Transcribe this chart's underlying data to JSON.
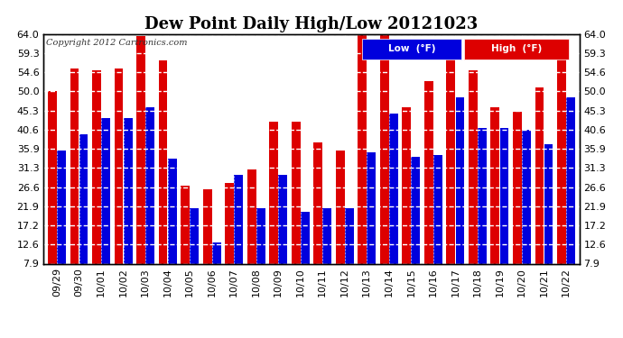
{
  "title": "Dew Point Daily High/Low 20121023",
  "copyright": "Copyright 2012 Cartronics.com",
  "background_color": "#ffffff",
  "plot_background": "#ffffff",
  "grid_color": "#bbbbbb",
  "bar_color_low": "#0000dd",
  "bar_color_high": "#dd0000",
  "legend_low_label": "Low  (°F)",
  "legend_high_label": "High  (°F)",
  "dates": [
    "09/29",
    "09/30",
    "10/01",
    "10/02",
    "10/03",
    "10/04",
    "10/05",
    "10/06",
    "10/07",
    "10/08",
    "10/09",
    "10/10",
    "10/11",
    "10/12",
    "10/13",
    "10/14",
    "10/15",
    "10/16",
    "10/17",
    "10/18",
    "10/19",
    "10/20",
    "10/21",
    "10/22"
  ],
  "high": [
    50.0,
    55.5,
    55.0,
    55.5,
    63.5,
    57.5,
    27.0,
    26.0,
    27.5,
    31.0,
    42.5,
    42.5,
    37.5,
    35.5,
    64.0,
    64.0,
    46.0,
    52.5,
    59.0,
    55.0,
    46.0,
    45.0,
    51.0,
    59.0
  ],
  "low": [
    35.5,
    39.5,
    43.5,
    43.5,
    46.0,
    33.5,
    21.5,
    13.0,
    29.5,
    21.5,
    29.5,
    20.5,
    21.5,
    21.5,
    35.0,
    44.5,
    34.0,
    34.5,
    48.5,
    41.0,
    41.0,
    40.5,
    37.0,
    48.5
  ],
  "ylim_min": 7.9,
  "ylim_max": 64.0,
  "yticks": [
    7.9,
    12.6,
    17.2,
    21.9,
    26.6,
    31.3,
    35.9,
    40.6,
    45.3,
    50.0,
    54.6,
    59.3,
    64.0
  ],
  "title_fontsize": 13,
  "tick_fontsize": 8,
  "copyright_fontsize": 7,
  "border_color": "#000000"
}
